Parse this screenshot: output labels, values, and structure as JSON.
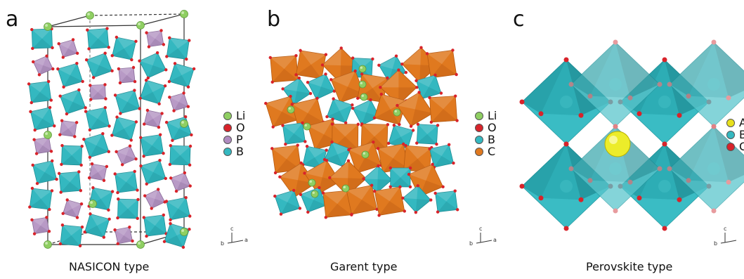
{
  "panels": [
    {
      "letter": "a",
      "caption": "NASICON type",
      "legend": [
        {
          "label": "Li",
          "color": "#8fcf62"
        },
        {
          "label": "O",
          "color": "#d8232a"
        },
        {
          "label": "P",
          "color": "#b08bbf"
        },
        {
          "label": "B",
          "color": "#34b8c0"
        }
      ],
      "axes": {
        "up": "c",
        "left": "b",
        "right": "a"
      }
    },
    {
      "letter": "b",
      "caption": "Garent type",
      "legend": [
        {
          "label": "Li",
          "color": "#8fcf62"
        },
        {
          "label": "O",
          "color": "#d8232a"
        },
        {
          "label": "B",
          "color": "#34b8c0"
        },
        {
          "label": "C",
          "color": "#e0791f"
        }
      ],
      "axes": {
        "up": "c",
        "left": "b",
        "right": "a"
      }
    },
    {
      "letter": "c",
      "caption": "Perovskite type",
      "legend": [
        {
          "label": "A",
          "color": "#e8e01c"
        },
        {
          "label": "B",
          "color": "#34b8c0"
        },
        {
          "label": "C",
          "color": "#d8232a"
        }
      ],
      "axes": {
        "up": "c",
        "left": "b",
        "right": "a"
      }
    }
  ],
  "colors": {
    "teal": "#34b8c0",
    "teal_dark": "#1f8f97",
    "orange": "#e0791f",
    "orange_dark": "#b85a10",
    "purple": "#b89ac6",
    "red": "#d8232a",
    "green": "#8fcf62",
    "yellow": "#ecec2a"
  }
}
